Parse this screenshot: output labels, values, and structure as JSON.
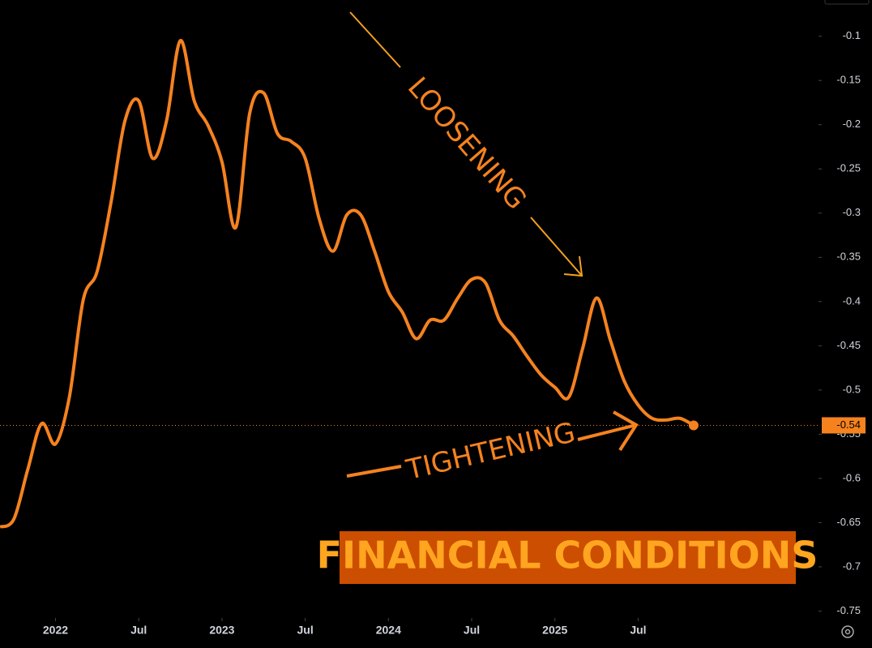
{
  "chart_data": {
    "type": "line",
    "title": "FINANCIAL CONDITIONS",
    "annotations": [
      "LOOSENING",
      "TIGHTENING"
    ],
    "x": [
      "2021-09",
      "2021-10",
      "2021-11",
      "2021-12",
      "2022-01",
      "2022-02",
      "2022-03",
      "2022-04",
      "2022-05",
      "2022-06",
      "2022-07",
      "2022-08",
      "2022-09",
      "2022-10",
      "2022-11",
      "2022-12",
      "2023-01",
      "2023-02",
      "2023-03",
      "2023-04",
      "2023-05",
      "2023-06",
      "2023-07",
      "2023-08",
      "2023-09",
      "2023-10",
      "2023-11",
      "2023-12",
      "2024-01",
      "2024-02",
      "2024-03",
      "2024-04",
      "2024-05",
      "2024-06",
      "2024-07",
      "2024-08",
      "2024-09",
      "2024-10",
      "2024-11",
      "2024-12",
      "2025-01",
      "2025-02",
      "2025-03",
      "2025-04",
      "2025-05",
      "2025-06",
      "2025-07",
      "2025-08",
      "2025-09",
      "2025-10",
      "2025-11"
    ],
    "values": [
      -0.655,
      -0.646,
      -0.59,
      -0.538,
      -0.561,
      -0.508,
      -0.398,
      -0.366,
      -0.288,
      -0.196,
      -0.173,
      -0.238,
      -0.196,
      -0.105,
      -0.173,
      -0.201,
      -0.242,
      -0.316,
      -0.187,
      -0.164,
      -0.21,
      -0.219,
      -0.238,
      -0.306,
      -0.343,
      -0.302,
      -0.302,
      -0.343,
      -0.389,
      -0.412,
      -0.442,
      -0.421,
      -0.421,
      -0.396,
      -0.375,
      -0.379,
      -0.421,
      -0.439,
      -0.462,
      -0.483,
      -0.497,
      -0.508,
      -0.453,
      -0.396,
      -0.444,
      -0.49,
      -0.517,
      -0.532,
      -0.534,
      -0.532,
      -0.54
    ],
    "color": "#f5821f",
    "xlim": [
      "2021-09",
      "2026-08"
    ],
    "xticks": [
      {
        "value": "2022-01",
        "label": "2022"
      },
      {
        "value": "2022-07",
        "label": "Jul"
      },
      {
        "value": "2023-01",
        "label": "2023"
      },
      {
        "value": "2023-07",
        "label": "Jul"
      },
      {
        "value": "2024-01",
        "label": "2024"
      },
      {
        "value": "2024-07",
        "label": "Jul"
      },
      {
        "value": "2025-01",
        "label": "2025"
      },
      {
        "value": "2025-07",
        "label": "Jul"
      }
    ],
    "ylim": [
      -0.756,
      -0.059
    ],
    "yticks": [
      -0.1,
      -0.15,
      -0.2,
      -0.25,
      -0.3,
      -0.35,
      -0.4,
      -0.45,
      -0.5,
      -0.55,
      -0.6,
      -0.65,
      -0.7,
      -0.75
    ],
    "grid": false
  }
}
